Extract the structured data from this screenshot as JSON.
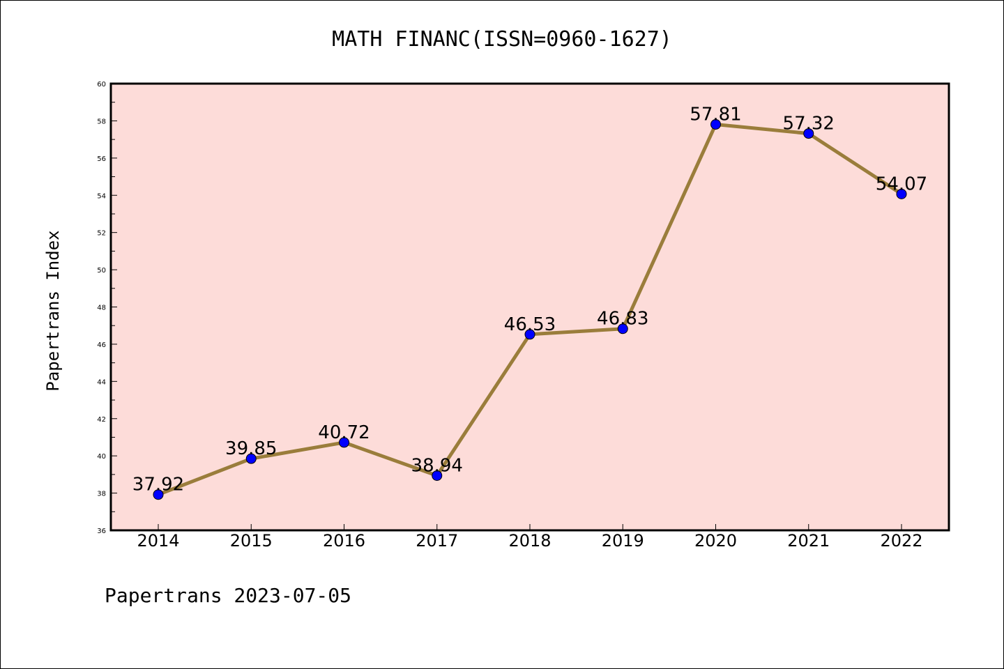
{
  "chart_data": {
    "type": "line",
    "title": "MATH FINANC(ISSN=0960-1627)",
    "ylabel": "Papertrans Index",
    "footer": "Papertrans 2023-07-05",
    "categories": [
      "2014",
      "2015",
      "2016",
      "2017",
      "2018",
      "2019",
      "2020",
      "2021",
      "2022"
    ],
    "values": [
      37.92,
      39.85,
      40.72,
      38.94,
      46.53,
      46.83,
      57.81,
      57.32,
      54.07
    ],
    "data_labels": [
      "37.92",
      "39.85",
      "40.72",
      "38.94",
      "46.53",
      "46.83",
      "57.81",
      "57.32",
      "54.07"
    ],
    "ylim": [
      36,
      60
    ],
    "yticks": [
      "36",
      "38",
      "40",
      "42",
      "44",
      "46",
      "48",
      "50",
      "52",
      "54",
      "56",
      "58",
      "60"
    ],
    "grid": false,
    "colors": {
      "plot_background": "#fddcd9",
      "line": "#9a7d3b",
      "marker": "#0000ff"
    }
  }
}
